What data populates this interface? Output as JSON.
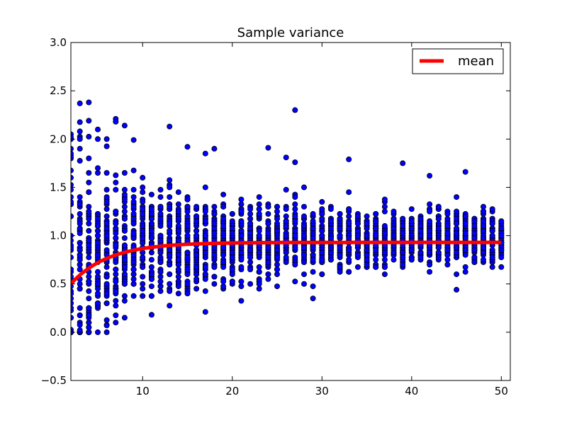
{
  "chart_data": {
    "type": "scatter",
    "title": "Sample variance",
    "xlabel": "",
    "ylabel": "",
    "xlim": [
      2,
      51
    ],
    "ylim": [
      -0.5,
      3.0
    ],
    "x_ticks": [
      10,
      20,
      30,
      40,
      50
    ],
    "y_ticks": [
      -0.5,
      0.0,
      0.5,
      1.0,
      1.5,
      2.0,
      2.5,
      3.0
    ],
    "x_tick_labels": [
      "10",
      "20",
      "30",
      "40",
      "50"
    ],
    "y_tick_labels": [
      "−0.5",
      "0.0",
      "0.5",
      "1.0",
      "1.5",
      "2.0",
      "2.5",
      "3.0"
    ],
    "grid": false,
    "legend": {
      "position": "top-right",
      "entries": [
        "mean"
      ]
    },
    "scatter_color": "#0000ff",
    "line_color": "#ff0000",
    "x_range": [
      2,
      50
    ],
    "samples_per_x": 50,
    "outliers": [
      {
        "x": 2,
        "y": 2.05
      },
      {
        "x": 2,
        "y": 2.02
      },
      {
        "x": 2,
        "y": 1.9
      },
      {
        "x": 2,
        "y": 1.85
      },
      {
        "x": 3,
        "y": 2.37
      },
      {
        "x": 3,
        "y": 2.08
      },
      {
        "x": 3,
        "y": 2.0
      },
      {
        "x": 3,
        "y": 1.9
      },
      {
        "x": 4,
        "y": 2.38
      },
      {
        "x": 4,
        "y": 2.19
      },
      {
        "x": 5,
        "y": 2.1
      },
      {
        "x": 6,
        "y": 2.0
      },
      {
        "x": 7,
        "y": 2.21
      },
      {
        "x": 7,
        "y": 2.18
      },
      {
        "x": 8,
        "y": 2.14
      },
      {
        "x": 9,
        "y": 1.99
      },
      {
        "x": 13,
        "y": 2.13
      },
      {
        "x": 15,
        "y": 1.92
      },
      {
        "x": 17,
        "y": 1.85
      },
      {
        "x": 18,
        "y": 1.9
      },
      {
        "x": 24,
        "y": 1.91
      },
      {
        "x": 26,
        "y": 1.81
      },
      {
        "x": 27,
        "y": 2.3
      },
      {
        "x": 27,
        "y": 1.76
      },
      {
        "x": 33,
        "y": 1.79
      },
      {
        "x": 39,
        "y": 1.75
      },
      {
        "x": 42,
        "y": 1.62
      },
      {
        "x": 46,
        "y": 1.66
      },
      {
        "x": 45,
        "y": 0.44
      },
      {
        "x": 29,
        "y": 0.35
      },
      {
        "x": 17,
        "y": 0.21
      },
      {
        "x": 11,
        "y": 0.18
      },
      {
        "x": 8,
        "y": 0.15
      },
      {
        "x": 6,
        "y": 0.07
      },
      {
        "x": 3,
        "y": 0.02
      },
      {
        "x": 2,
        "y": 0.0
      }
    ],
    "series": [
      {
        "name": "mean",
        "type": "line",
        "formula": "(n-1)/(n+0.05)",
        "x_start": 2,
        "x_end": 50
      }
    ]
  }
}
